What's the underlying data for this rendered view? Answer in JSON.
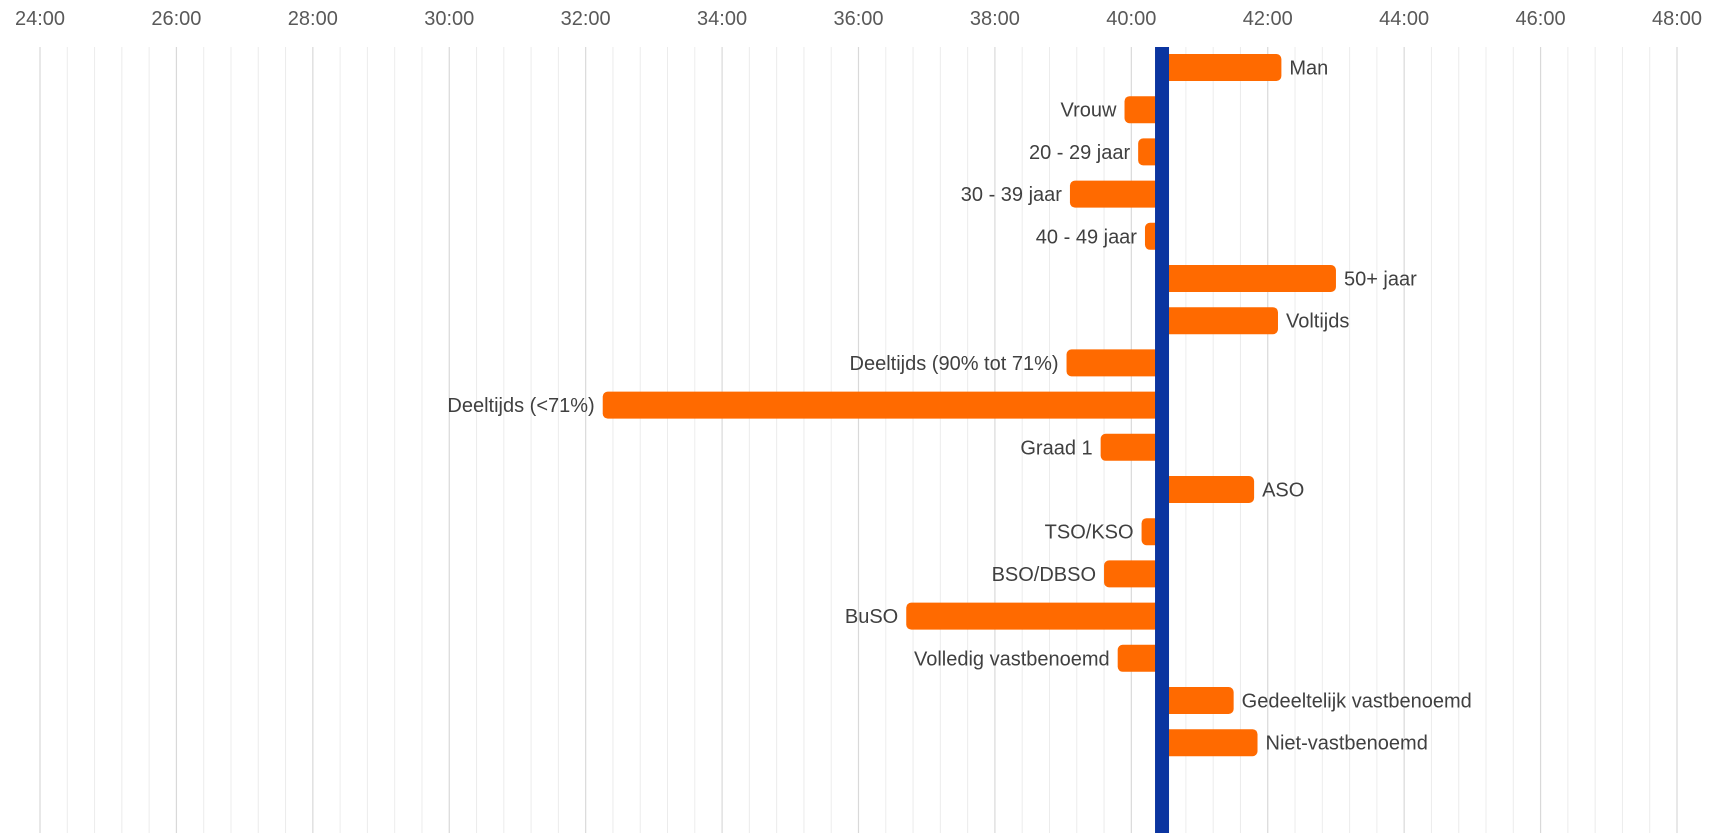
{
  "chart_data": {
    "type": "bar",
    "orientation": "horizontal",
    "baseline": 40.45,
    "xlim": [
      24,
      48
    ],
    "x_tick_labels": [
      "24:00",
      "26:00",
      "28:00",
      "30:00",
      "32:00",
      "34:00",
      "36:00",
      "38:00",
      "40:00",
      "42:00",
      "44:00",
      "46:00",
      "48:00"
    ],
    "grid": true,
    "categories": [
      "Man",
      "Vrouw",
      "20 - 29 jaar",
      "30 - 39 jaar",
      "40 - 49 jaar",
      "50+ jaar",
      "Voltijds",
      "Deeltijds (90% tot 71%)",
      "Deeltijds (<71%)",
      "Graad 1",
      "ASO",
      "TSO/KSO",
      "BSO/DBSO",
      "BuSO",
      "Volledig vastbenoemd",
      "Gedeeltelijk vastbenoemd",
      "Niet-vastbenoemd"
    ],
    "values": [
      42.2,
      39.9,
      40.1,
      39.1,
      40.2,
      43.0,
      42.15,
      39.05,
      32.25,
      39.55,
      41.8,
      40.15,
      39.6,
      36.7,
      39.8,
      41.5,
      41.85
    ],
    "colors": {
      "bar": "#ff6a00",
      "baseline": "#0b35a0",
      "grid_major": "#d9d9d9",
      "grid_minor": "#ececec"
    }
  }
}
